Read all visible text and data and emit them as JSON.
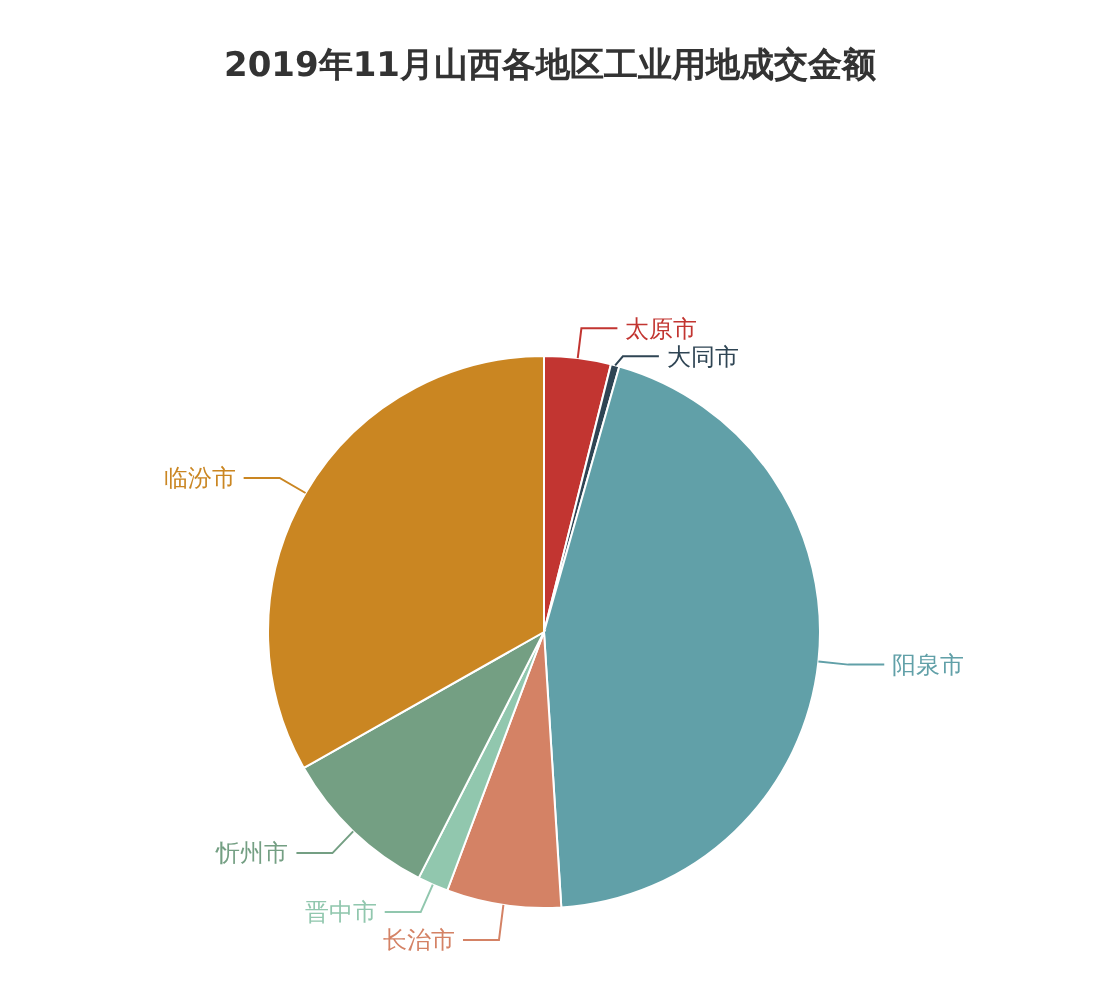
{
  "chart_data": {
    "type": "pie",
    "title": "2019年11月山西各地区工业用地成交金额",
    "categories": [
      "太原市",
      "大同市",
      "阳泉市",
      "长治市",
      "晋中市",
      "忻州市",
      "临汾市"
    ],
    "values": [
      3.9,
      0.5,
      44.6,
      6.7,
      1.8,
      9.3,
      33.2
    ],
    "colors": [
      "#c23531",
      "#2f4554",
      "#61a0a8",
      "#d48265",
      "#91c7ae",
      "#749f83",
      "#ca8622"
    ]
  }
}
